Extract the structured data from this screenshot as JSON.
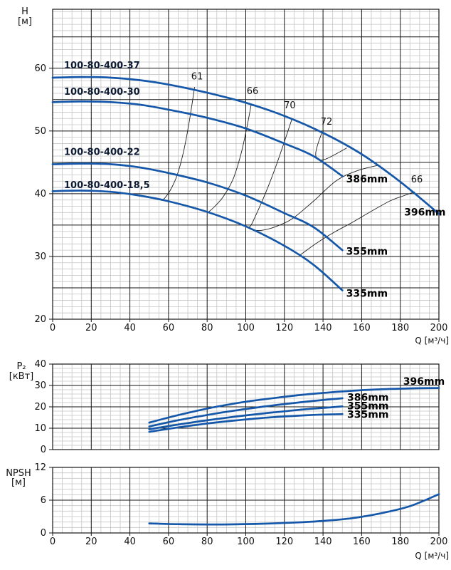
{
  "colors": {
    "curve_blue": "#1557a8",
    "iso_line": "#1f1f1f",
    "grid_major": "#161616",
    "grid_minor": "#c5c5c5",
    "text": "#111111",
    "model_label": "#0e1c33",
    "background": "#ffffff"
  },
  "x_axis": {
    "label": "Q [м³/ч]",
    "min": 0,
    "max": 200,
    "major_step": 20,
    "minor_step": 5,
    "ticks": [
      0,
      20,
      40,
      60,
      80,
      100,
      120,
      140,
      160,
      180,
      200
    ]
  },
  "chart_data": [
    {
      "type": "line",
      "panel": "head",
      "ylabel_lines": [
        "H",
        "[м]"
      ],
      "xlabel": "Q [м³/ч]",
      "xlim": [
        0,
        200
      ],
      "ylim": [
        20,
        69.4
      ],
      "y_ticks": [
        20,
        30,
        40,
        50,
        60
      ],
      "y_major": 5,
      "y_minor": 1,
      "x_tick_labels": true,
      "grid": true,
      "series": [
        {
          "model": "100-80-400-37",
          "trim": "396mm",
          "points": [
            [
              0,
              58.5
            ],
            [
              15,
              58.6
            ],
            [
              30,
              58.5
            ],
            [
              45,
              58.1
            ],
            [
              60,
              57.4
            ],
            [
              80,
              56.1
            ],
            [
              100,
              54.5
            ],
            [
              120,
              52.4
            ],
            [
              140,
              49.7
            ],
            [
              160,
              46.3
            ],
            [
              180,
              41.9
            ],
            [
              200,
              36.8
            ]
          ]
        },
        {
          "model": "100-80-400-30",
          "trim": "386mm",
          "points": [
            [
              0,
              54.6
            ],
            [
              15,
              54.7
            ],
            [
              30,
              54.6
            ],
            [
              45,
              54.2
            ],
            [
              60,
              53.4
            ],
            [
              80,
              52.1
            ],
            [
              100,
              50.4
            ],
            [
              120,
              48.0
            ],
            [
              135,
              46.0
            ],
            [
              150,
              42.8
            ]
          ]
        },
        {
          "model": "100-80-400-22",
          "trim": "355mm",
          "points": [
            [
              0,
              44.7
            ],
            [
              15,
              44.8
            ],
            [
              30,
              44.7
            ],
            [
              45,
              44.2
            ],
            [
              60,
              43.3
            ],
            [
              80,
              41.8
            ],
            [
              100,
              39.7
            ],
            [
              120,
              36.9
            ],
            [
              135,
              34.7
            ],
            [
              150,
              31.0
            ]
          ]
        },
        {
          "model": "100-80-400-18,5",
          "trim": "335mm",
          "points": [
            [
              0,
              40.4
            ],
            [
              15,
              40.5
            ],
            [
              30,
              40.3
            ],
            [
              45,
              39.7
            ],
            [
              60,
              38.8
            ],
            [
              80,
              37.1
            ],
            [
              100,
              34.8
            ],
            [
              120,
              31.7
            ],
            [
              135,
              28.7
            ],
            [
              150,
              24.6
            ]
          ]
        }
      ],
      "efficiency_curves": [
        {
          "label": "61",
          "label_at": [
            74.8,
            58.2
          ],
          "points": [
            [
              73.5,
              57.0
            ],
            [
              71,
              52.0
            ],
            [
              68,
              47.0
            ],
            [
              64.5,
              43.0
            ],
            [
              61,
              40.6
            ],
            [
              58,
              39.3
            ],
            [
              56.5,
              38.9
            ]
          ]
        },
        {
          "label": "66",
          "label_at": [
            103.5,
            55.9
          ],
          "points": [
            [
              102.8,
              54.2
            ],
            [
              100.5,
              50.5
            ],
            [
              97.5,
              46.3
            ],
            [
              93.5,
              42.4
            ],
            [
              88.5,
              39.6
            ],
            [
              84,
              38.0
            ],
            [
              81,
              37.15
            ]
          ]
        },
        {
          "label": "70",
          "label_at": [
            122.8,
            53.6
          ],
          "points": [
            [
              124,
              52.0
            ],
            [
              120,
              48.3
            ],
            [
              115.5,
              44.3
            ],
            [
              110.5,
              40.3
            ],
            [
              106,
              37.1
            ],
            [
              102.8,
              35.0
            ],
            [
              101.3,
              34.6
            ],
            [
              103.5,
              34.25
            ],
            [
              108,
              34.15
            ],
            [
              115,
              34.7
            ],
            [
              124,
              36.0
            ],
            [
              135,
              38.8
            ],
            [
              147,
              42.1
            ],
            [
              158,
              43.7
            ],
            [
              168,
              44.5
            ]
          ]
        },
        {
          "label": "72",
          "label_at": [
            141.8,
            51.0
          ],
          "points": [
            [
              139.5,
              49.8
            ],
            [
              137.2,
              47.8
            ],
            [
              136.2,
              46.4
            ],
            [
              136.8,
              45.7
            ],
            [
              138.8,
              45.35
            ],
            [
              142,
              45.6
            ],
            [
              146.5,
              46.3
            ],
            [
              152.3,
              47.3
            ]
          ]
        },
        {
          "label": "66",
          "label_at": [
            188.6,
            41.8
          ],
          "points": [
            [
              128,
              30.2
            ],
            [
              137,
              32.2
            ],
            [
              146,
              33.9
            ],
            [
              155,
              35.4
            ],
            [
              165,
              37.2
            ],
            [
              175,
              38.9
            ],
            [
              182,
              39.7
            ],
            [
              187.5,
              40.3
            ]
          ]
        }
      ],
      "text_labels": [
        {
          "text": "100-80-400-37",
          "x": 5.9,
          "y": 60.0,
          "style": "model"
        },
        {
          "text": "100-80-400-30",
          "x": 5.9,
          "y": 55.8,
          "style": "model"
        },
        {
          "text": "100-80-400-22",
          "x": 5.9,
          "y": 46.2,
          "style": "model"
        },
        {
          "text": "100-80-400-18,5",
          "x": 5.9,
          "y": 40.9,
          "style": "model"
        },
        {
          "text": "386mm",
          "x": 152,
          "y": 41.8,
          "style": "trim"
        },
        {
          "text": "396mm",
          "x": 182,
          "y": 36.5,
          "style": "trim"
        },
        {
          "text": "355mm",
          "x": 152,
          "y": 30.3,
          "style": "trim"
        },
        {
          "text": "335mm",
          "x": 152,
          "y": 23.6,
          "style": "trim"
        }
      ]
    },
    {
      "type": "line",
      "panel": "power",
      "ylabel_lines": [
        "P₂",
        "[кВт]"
      ],
      "xlabel": "",
      "xlim": [
        0,
        200
      ],
      "ylim": [
        0,
        40
      ],
      "y_ticks": [
        0,
        10,
        20,
        30,
        40
      ],
      "y_major": 10,
      "y_minor": 2,
      "x_tick_labels": false,
      "grid": true,
      "series": [
        {
          "trim": "396mm",
          "points": [
            [
              50,
              12.6
            ],
            [
              60,
              15.0
            ],
            [
              70,
              17.2
            ],
            [
              80,
              19.2
            ],
            [
              90,
              20.9
            ],
            [
              100,
              22.4
            ],
            [
              110,
              23.6
            ],
            [
              120,
              24.7
            ],
            [
              130,
              25.7
            ],
            [
              140,
              26.5
            ],
            [
              150,
              27.2
            ],
            [
              160,
              27.8
            ],
            [
              170,
              28.2
            ],
            [
              180,
              28.5
            ],
            [
              190,
              28.7
            ],
            [
              200,
              28.8
            ]
          ]
        },
        {
          "trim": "386mm",
          "points": [
            [
              50,
              10.8
            ],
            [
              60,
              12.8
            ],
            [
              70,
              14.6
            ],
            [
              80,
              16.2
            ],
            [
              90,
              17.7
            ],
            [
              100,
              19.0
            ],
            [
              110,
              20.2
            ],
            [
              120,
              21.3
            ],
            [
              130,
              22.3
            ],
            [
              140,
              23.2
            ],
            [
              150,
              24.0
            ]
          ]
        },
        {
          "trim": "355mm",
          "points": [
            [
              50,
              9.5
            ],
            [
              60,
              11.0
            ],
            [
              70,
              12.4
            ],
            [
              80,
              13.7
            ],
            [
              90,
              14.9
            ],
            [
              100,
              16.0
            ],
            [
              110,
              17.0
            ],
            [
              120,
              17.9
            ],
            [
              130,
              18.8
            ],
            [
              140,
              19.5
            ],
            [
              150,
              20.2
            ]
          ]
        },
        {
          "trim": "335mm",
          "points": [
            [
              50,
              8.3
            ],
            [
              60,
              9.7
            ],
            [
              70,
              11.0
            ],
            [
              80,
              12.2
            ],
            [
              90,
              13.2
            ],
            [
              100,
              14.1
            ],
            [
              110,
              14.9
            ],
            [
              120,
              15.5
            ],
            [
              130,
              16.0
            ],
            [
              140,
              16.4
            ],
            [
              150,
              16.6
            ]
          ]
        }
      ],
      "efficiency_curves": [],
      "text_labels": [
        {
          "text": "396mm",
          "x": 181.5,
          "y": 30.4,
          "style": "trim"
        },
        {
          "text": "386mm",
          "x": 152.5,
          "y": 22.9,
          "style": "trim"
        },
        {
          "text": "355mm",
          "x": 152.5,
          "y": 18.9,
          "style": "trim"
        },
        {
          "text": "335mm",
          "x": 152.5,
          "y": 14.8,
          "style": "trim"
        }
      ]
    },
    {
      "type": "line",
      "panel": "npsh",
      "ylabel_lines": [
        "NPSH",
        "[м]"
      ],
      "xlabel": "Q [м³/ч]",
      "xlim": [
        0,
        200
      ],
      "ylim": [
        0,
        12
      ],
      "y_ticks": [
        0,
        6,
        12
      ],
      "y_major": 6,
      "y_minor": 1,
      "x_tick_labels": true,
      "grid": true,
      "series": [
        {
          "name": "NPSH",
          "points": [
            [
              50,
              1.75
            ],
            [
              65,
              1.6
            ],
            [
              85,
              1.55
            ],
            [
              105,
              1.65
            ],
            [
              125,
              1.9
            ],
            [
              140,
              2.2
            ],
            [
              155,
              2.7
            ],
            [
              170,
              3.6
            ],
            [
              185,
              4.9
            ],
            [
              200,
              7.1
            ]
          ]
        }
      ],
      "efficiency_curves": [],
      "text_labels": []
    }
  ]
}
